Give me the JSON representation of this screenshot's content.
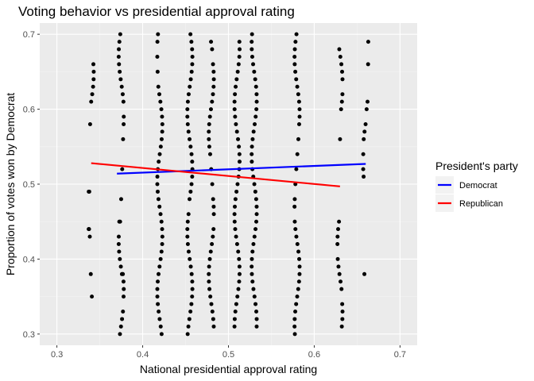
{
  "chart_data": {
    "type": "scatter",
    "title": "Voting behavior vs presidential approval rating",
    "xlabel": "National presidential approval rating",
    "ylabel": "Proportion of votes won by Democrat",
    "xlim": [
      0.28,
      0.72
    ],
    "ylim": [
      0.285,
      0.715
    ],
    "x_ticks": [
      "0.3",
      "0.4",
      "0.5",
      "0.6",
      "0.7"
    ],
    "y_ticks": [
      "0.3",
      "0.4",
      "0.5",
      "0.6",
      "0.7"
    ],
    "grid": true,
    "legend": {
      "title": "President's party",
      "position": "right",
      "entries": [
        {
          "name": "Democrat",
          "color": "#0000ff"
        },
        {
          "name": "Republican",
          "color": "#ff0000"
        }
      ]
    },
    "point_color": "#000000",
    "panel_background": "#ebebeb",
    "clusters": [
      {
        "x": 0.34,
        "y": [
          0.35,
          0.38,
          0.43,
          0.44,
          0.44,
          0.49,
          0.49,
          0.58,
          0.61,
          0.62,
          0.63,
          0.64,
          0.65,
          0.66
        ]
      },
      {
        "x": 0.375,
        "y": [
          0.3,
          0.31,
          0.32,
          0.33,
          0.35,
          0.36,
          0.37,
          0.38,
          0.38,
          0.39,
          0.4,
          0.41,
          0.42,
          0.43,
          0.45,
          0.45,
          0.48,
          0.52,
          0.56,
          0.58,
          0.59,
          0.61,
          0.62,
          0.63,
          0.64,
          0.65,
          0.66,
          0.67,
          0.68,
          0.69,
          0.7
        ]
      },
      {
        "x": 0.42,
        "y": [
          0.3,
          0.31,
          0.32,
          0.33,
          0.34,
          0.35,
          0.36,
          0.37,
          0.38,
          0.39,
          0.4,
          0.41,
          0.42,
          0.43,
          0.44,
          0.45,
          0.46,
          0.47,
          0.48,
          0.49,
          0.5,
          0.51,
          0.52,
          0.53,
          0.54,
          0.55,
          0.56,
          0.57,
          0.58,
          0.59,
          0.6,
          0.61,
          0.62,
          0.63,
          0.65,
          0.67,
          0.69,
          0.7
        ]
      },
      {
        "x": 0.455,
        "y": [
          0.3,
          0.31,
          0.32,
          0.33,
          0.34,
          0.35,
          0.36,
          0.37,
          0.38,
          0.39,
          0.4,
          0.41,
          0.42,
          0.43,
          0.44,
          0.45,
          0.46,
          0.48,
          0.49,
          0.5,
          0.51,
          0.52,
          0.53,
          0.54,
          0.55,
          0.56,
          0.57,
          0.58,
          0.59,
          0.6,
          0.61,
          0.62,
          0.63,
          0.64,
          0.65,
          0.66,
          0.67,
          0.68,
          0.69,
          0.7
        ]
      },
      {
        "x": 0.48,
        "y": [
          0.31,
          0.32,
          0.33,
          0.34,
          0.35,
          0.36,
          0.37,
          0.38,
          0.39,
          0.4,
          0.41,
          0.42,
          0.43,
          0.44,
          0.46,
          0.47,
          0.48,
          0.5,
          0.52,
          0.54,
          0.55,
          0.56,
          0.57,
          0.58,
          0.59,
          0.6,
          0.61,
          0.62,
          0.63,
          0.64,
          0.65,
          0.66,
          0.68,
          0.69
        ]
      },
      {
        "x": 0.51,
        "y": [
          0.31,
          0.32,
          0.33,
          0.34,
          0.35,
          0.36,
          0.37,
          0.38,
          0.39,
          0.4,
          0.41,
          0.42,
          0.43,
          0.44,
          0.45,
          0.46,
          0.47,
          0.48,
          0.49,
          0.5,
          0.51,
          0.52,
          0.53,
          0.54,
          0.55,
          0.56,
          0.57,
          0.58,
          0.59,
          0.6,
          0.61,
          0.62,
          0.63,
          0.64,
          0.65,
          0.66,
          0.67,
          0.68,
          0.69
        ]
      },
      {
        "x": 0.53,
        "y": [
          0.31,
          0.32,
          0.33,
          0.34,
          0.35,
          0.36,
          0.37,
          0.38,
          0.39,
          0.4,
          0.41,
          0.42,
          0.43,
          0.44,
          0.45,
          0.46,
          0.47,
          0.48,
          0.49,
          0.5,
          0.51,
          0.52,
          0.53,
          0.54,
          0.55,
          0.56,
          0.57,
          0.58,
          0.59,
          0.6,
          0.61,
          0.62,
          0.63,
          0.64,
          0.65,
          0.66,
          0.67,
          0.68,
          0.69,
          0.7
        ]
      },
      {
        "x": 0.58,
        "y": [
          0.3,
          0.31,
          0.32,
          0.33,
          0.34,
          0.35,
          0.36,
          0.37,
          0.38,
          0.39,
          0.4,
          0.41,
          0.42,
          0.43,
          0.44,
          0.45,
          0.47,
          0.48,
          0.5,
          0.52,
          0.54,
          0.56,
          0.58,
          0.59,
          0.6,
          0.61,
          0.62,
          0.63,
          0.64,
          0.65,
          0.66,
          0.67,
          0.68,
          0.69,
          0.7
        ]
      },
      {
        "x": 0.63,
        "y": [
          0.31,
          0.32,
          0.33,
          0.34,
          0.36,
          0.37,
          0.38,
          0.39,
          0.4,
          0.42,
          0.43,
          0.44,
          0.45,
          0.56,
          0.6,
          0.61,
          0.62,
          0.64,
          0.65,
          0.66,
          0.67,
          0.68
        ]
      },
      {
        "x": 0.66,
        "y": [
          0.38,
          0.51,
          0.52,
          0.54,
          0.56,
          0.57,
          0.58,
          0.6,
          0.61,
          0.66,
          0.69
        ]
      }
    ],
    "trend_lines": [
      {
        "name": "Democrat",
        "color": "#0000ff",
        "x": [
          0.37,
          0.66
        ],
        "y": [
          0.514,
          0.527
        ]
      },
      {
        "name": "Republican",
        "color": "#ff0000",
        "x": [
          0.34,
          0.63
        ],
        "y": [
          0.528,
          0.497
        ]
      }
    ]
  }
}
